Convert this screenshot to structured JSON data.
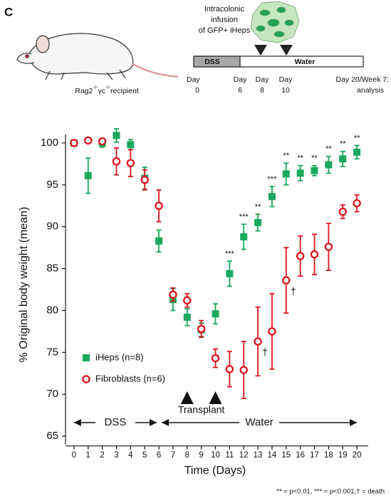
{
  "panel_label": "C",
  "diagram": {
    "recipient": [
      "Rag2",
      "-/-",
      "γc",
      "-/-",
      "recipient"
    ],
    "infusion": [
      "Intracolonic",
      "infusion",
      "of GFP+ iHeps"
    ],
    "phases": [
      "DSS",
      "Water"
    ],
    "days": [
      [
        "Day",
        "0"
      ],
      [
        "Day",
        "6"
      ],
      [
        "Day",
        "8"
      ],
      [
        "Day",
        "10"
      ],
      [
        "Day 20/Week 7:",
        "analysis"
      ]
    ]
  },
  "chart_data": {
    "type": "scatter",
    "x_label": "Time (Days)",
    "y_label": "% Original body weight (mean)",
    "x": [
      0,
      1,
      2,
      3,
      4,
      5,
      6,
      7,
      8,
      9,
      10,
      11,
      12,
      13,
      14,
      15,
      16,
      17,
      18,
      19,
      20
    ],
    "xlim": [
      -0.8,
      20.8
    ],
    "xticks": [
      0,
      1,
      2,
      3,
      4,
      5,
      6,
      7,
      8,
      9,
      10,
      11,
      12,
      13,
      14,
      15,
      16,
      17,
      18,
      19,
      20
    ],
    "ylim": [
      64,
      101
    ],
    "yticks": [
      65,
      70,
      75,
      80,
      85,
      90,
      95,
      100
    ],
    "legend": "lower left",
    "series": [
      {
        "name": "iHeps (n=8)",
        "color": "#1aa85c",
        "marker": "square",
        "values": [
          100.0,
          96.1,
          100.0,
          100.9,
          99.8,
          95.8,
          88.3,
          81.3,
          79.2,
          77.7,
          79.6,
          84.4,
          88.8,
          90.5,
          93.6,
          96.3,
          96.4,
          96.7,
          97.4,
          98.1,
          98.9
        ],
        "errors": [
          0.2,
          2.1,
          0.5,
          0.8,
          0.6,
          1.3,
          1.3,
          1.3,
          1.0,
          0.8,
          1.2,
          1.5,
          1.5,
          1.0,
          1.2,
          1.3,
          0.9,
          0.6,
          1.0,
          0.9,
          0.8
        ]
      },
      {
        "name": "Fibroblasts (n=6)",
        "color": "#e0141e",
        "marker": "circle",
        "values": [
          100.0,
          100.3,
          100.2,
          97.8,
          97.6,
          95.6,
          92.5,
          81.9,
          81.2,
          77.8,
          74.3,
          73.0,
          72.9,
          76.3,
          77.5,
          83.6,
          86.5,
          86.7,
          87.6,
          91.8,
          92.8
        ],
        "errors": [
          0.2,
          0.2,
          0.3,
          1.6,
          1.6,
          1.2,
          1.9,
          0.8,
          0.8,
          1.0,
          1.1,
          2.1,
          3.4,
          4.1,
          4.5,
          3.9,
          2.4,
          2.4,
          2.8,
          0.8,
          1.0
        ],
        "annotations": [
          null,
          null,
          null,
          null,
          null,
          null,
          null,
          null,
          null,
          null,
          null,
          null,
          null,
          "†",
          null,
          "†",
          null,
          null,
          null,
          null,
          null
        ]
      }
    ],
    "significance": [
      null,
      null,
      null,
      null,
      null,
      null,
      null,
      null,
      null,
      null,
      null,
      "***",
      "***",
      "**",
      "***",
      "**",
      "**",
      "**",
      "**",
      "**",
      "**"
    ],
    "phases": [
      {
        "label": "DSS",
        "start": 0,
        "end": 6
      },
      {
        "label": "Water",
        "start": 6,
        "end": 20
      }
    ],
    "transplant": {
      "label": "Transplant",
      "days": [
        8,
        10
      ]
    }
  },
  "footnote": "** = p<0.01, *** = p<0.001,† = death"
}
